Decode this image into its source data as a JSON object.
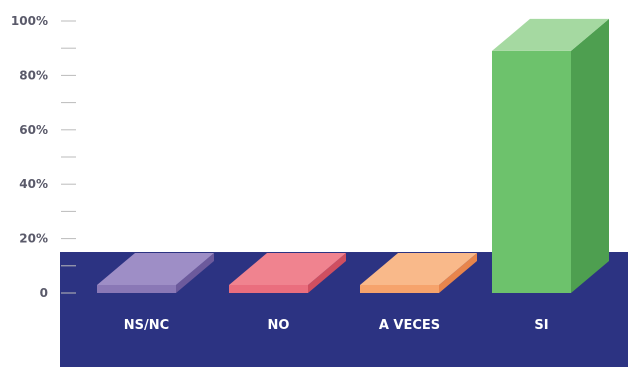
{
  "chart_data": {
    "type": "bar",
    "style": "3d-column",
    "categories": [
      "NS/NC",
      "NO",
      "A VECES",
      "SI"
    ],
    "values": [
      1,
      1,
      1,
      89
    ],
    "ylim": [
      0,
      100
    ],
    "y_ticks": [
      {
        "value": 0,
        "label": "0"
      },
      {
        "value": 20,
        "label": "20%"
      },
      {
        "value": 40,
        "label": "40%"
      },
      {
        "value": 60,
        "label": "60%"
      },
      {
        "value": 80,
        "label": "80%"
      },
      {
        "value": 100,
        "label": "100%"
      }
    ],
    "minor_ticks": [
      10,
      30,
      50,
      70,
      90
    ],
    "title": "",
    "xlabel": "",
    "ylabel": "",
    "legend": "none",
    "grid": false,
    "colors": {
      "floor": "#2c3382",
      "axis": "#bbbbbb",
      "bars": [
        {
          "front": "#8a78b6",
          "top": "#9e8ec6",
          "side": "#6c5a9c"
        },
        {
          "front": "#ea6e7e",
          "top": "#f0838f",
          "side": "#cf4f60"
        },
        {
          "front": "#f6a36c",
          "top": "#f9b98a",
          "side": "#e8854c"
        },
        {
          "front": "#6dc26c",
          "top": "#a5d9a1",
          "side": "#4e9f50"
        }
      ]
    }
  }
}
